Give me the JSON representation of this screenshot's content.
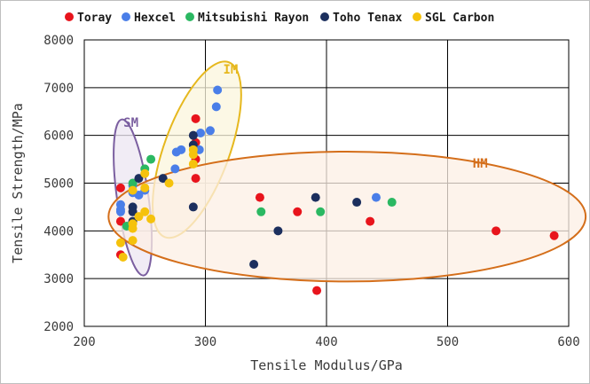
{
  "chart_data": {
    "type": "scatter",
    "xlabel": "Tensile Modulus/GPa",
    "ylabel": "Tensile Strength/MPa",
    "xlim": [
      200,
      600
    ],
    "ylim": [
      2000,
      8000
    ],
    "xticks": [
      200,
      300,
      400,
      500,
      600
    ],
    "yticks": [
      2000,
      3000,
      4000,
      5000,
      6000,
      7000,
      8000
    ],
    "grid": true,
    "legend_position": "top",
    "series": [
      {
        "name": "Toray",
        "color": "#e8141c",
        "points": [
          [
            230,
            4900
          ],
          [
            230,
            4200
          ],
          [
            230,
            3500
          ],
          [
            292,
            6350
          ],
          [
            292,
            5850
          ],
          [
            292,
            5500
          ],
          [
            292,
            5100
          ],
          [
            345,
            4700
          ],
          [
            376,
            4400
          ],
          [
            392,
            2750
          ],
          [
            436,
            4200
          ],
          [
            540,
            4000
          ],
          [
            588,
            3900
          ]
        ]
      },
      {
        "name": "Hexcel",
        "color": "#4a7ee8",
        "points": [
          [
            230,
            4550
          ],
          [
            230,
            4450
          ],
          [
            230,
            4400
          ],
          [
            240,
            4950
          ],
          [
            240,
            4800
          ],
          [
            245,
            4750
          ],
          [
            250,
            4850
          ],
          [
            275,
            5300
          ],
          [
            276,
            5650
          ],
          [
            280,
            5700
          ],
          [
            295,
            5700
          ],
          [
            296,
            6050
          ],
          [
            304,
            6100
          ],
          [
            309,
            6600
          ],
          [
            310,
            6950
          ],
          [
            441,
            4700
          ]
        ]
      },
      {
        "name": "Mitsubishi Rayon",
        "color": "#2bb862",
        "points": [
          [
            235,
            4100
          ],
          [
            240,
            5000
          ],
          [
            250,
            5300
          ],
          [
            255,
            5500
          ],
          [
            346,
            4400
          ],
          [
            395,
            4400
          ],
          [
            454,
            4600
          ]
        ]
      },
      {
        "name": "Toho Tenax",
        "color": "#1c2f5e",
        "points": [
          [
            240,
            4500
          ],
          [
            240,
            4400
          ],
          [
            240,
            4200
          ],
          [
            245,
            5100
          ],
          [
            265,
            5100
          ],
          [
            290,
            6000
          ],
          [
            290,
            5800
          ],
          [
            290,
            4500
          ],
          [
            340,
            3300
          ],
          [
            360,
            4000
          ],
          [
            391,
            4700
          ],
          [
            425,
            4600
          ]
        ]
      },
      {
        "name": "SGL Carbon",
        "color": "#f5c20c",
        "points": [
          [
            230,
            3750
          ],
          [
            232,
            3450
          ],
          [
            240,
            4850
          ],
          [
            240,
            4150
          ],
          [
            240,
            4050
          ],
          [
            240,
            3800
          ],
          [
            245,
            4300
          ],
          [
            250,
            4900
          ],
          [
            250,
            4400
          ],
          [
            250,
            5200
          ],
          [
            255,
            4250
          ],
          [
            270,
            5000
          ],
          [
            290,
            5700
          ],
          [
            290,
            5600
          ],
          [
            290,
            5400
          ]
        ]
      }
    ],
    "regions": [
      {
        "label": "SM",
        "color": "#7b5fa0",
        "fill": "#ece6f2",
        "ellipse": {
          "cx": 240,
          "cy": 4700,
          "rx": 13,
          "ry": 1650,
          "angle": -8
        }
      },
      {
        "label": "IM",
        "color": "#e6b81e",
        "fill": "#fbf5dc",
        "ellipse": {
          "cx": 293,
          "cy": 5700,
          "rx": 27,
          "ry": 1950,
          "angle": 20
        }
      },
      {
        "label": "HM",
        "color": "#d46e1a",
        "fill": "#fcefe4",
        "ellipse": {
          "cx": 417,
          "cy": 4300,
          "rx": 197,
          "ry": 1360,
          "angle": 0
        }
      }
    ]
  }
}
